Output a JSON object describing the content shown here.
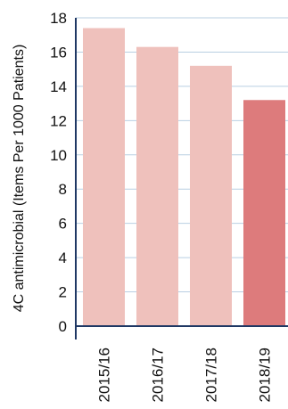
{
  "chart_data": {
    "type": "bar",
    "categories": [
      "2015/16",
      "2016/17",
      "2017/18",
      "2018/19"
    ],
    "values": [
      17.4,
      16.3,
      15.2,
      13.2
    ],
    "bar_colors": [
      "#efc1bc",
      "#efc1bc",
      "#efc1bc",
      "#dd7b7c"
    ],
    "ylabel": "4C antimicrobial (Items Per 1000 Patients)",
    "xlabel": "",
    "ylim": [
      0,
      18
    ],
    "yticks": [
      0,
      2,
      4,
      6,
      8,
      10,
      12,
      14,
      16,
      18
    ],
    "grid": true,
    "gridline_color": "#b9cfe2",
    "axis_color": "#1f3864"
  }
}
